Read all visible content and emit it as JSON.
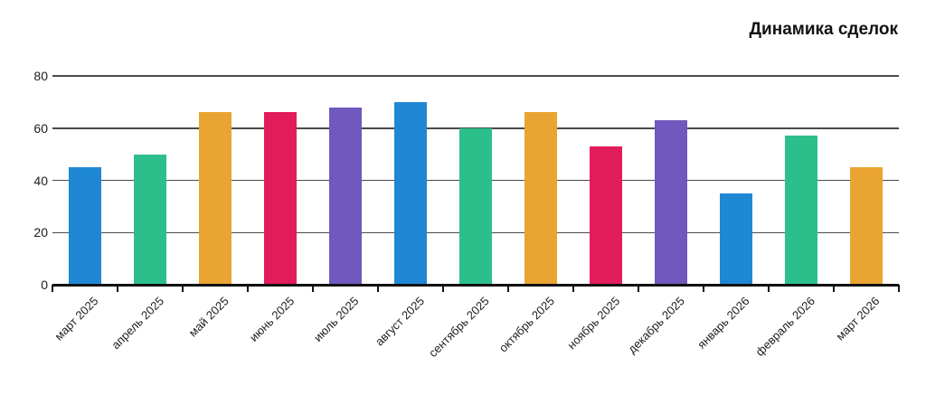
{
  "title": "Динамика сделок",
  "chart_data": {
    "type": "bar",
    "title": "Динамика сделок",
    "categories": [
      "март 2025",
      "апрель 2025",
      "май 2025",
      "июнь 2025",
      "июль 2025",
      "август 2025",
      "сентябрь 2025",
      "октябрь 2025",
      "ноябрь 2025",
      "декабрь 2025",
      "январь 2026",
      "февраль 2026",
      "март 2026"
    ],
    "values": [
      45,
      50,
      66,
      66,
      68,
      70,
      60,
      66,
      53,
      63,
      35,
      57,
      45
    ],
    "palette": [
      "#1E88D4",
      "#2CBF8C",
      "#E9A432",
      "#E21C5B",
      "#6F58BE"
    ],
    "xlabel": "",
    "ylabel": "",
    "ylim": [
      0,
      80
    ],
    "yticks": [
      0,
      20,
      40,
      60,
      80
    ],
    "grid": "horizontal",
    "legend": "none",
    "axis_color": "#111111",
    "gridline_color": "#4A4A4A",
    "text_color": "#1C1C1C"
  }
}
